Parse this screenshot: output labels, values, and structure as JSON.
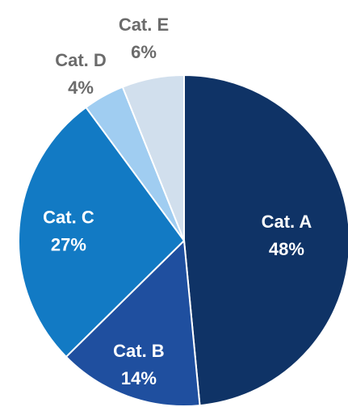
{
  "chart_data": {
    "type": "pie",
    "title": "",
    "categories": [
      "Cat. A",
      "Cat. B",
      "Cat. C",
      "Cat. D",
      "Cat. E"
    ],
    "values": [
      48,
      14,
      27,
      4,
      6
    ],
    "value_labels": [
      "48%",
      "14%",
      "27%",
      "4%",
      "6%"
    ],
    "colors": [
      "#0f3366",
      "#1f4f9f",
      "#127ac4",
      "#a0cdf1",
      "#d1dfed"
    ],
    "label_colors": [
      "#ffffff",
      "#ffffff",
      "#ffffff",
      "#6b6b6b",
      "#6b6b6b"
    ],
    "start_angle_deg": 0,
    "direction": "clockwise",
    "legend": "none"
  }
}
